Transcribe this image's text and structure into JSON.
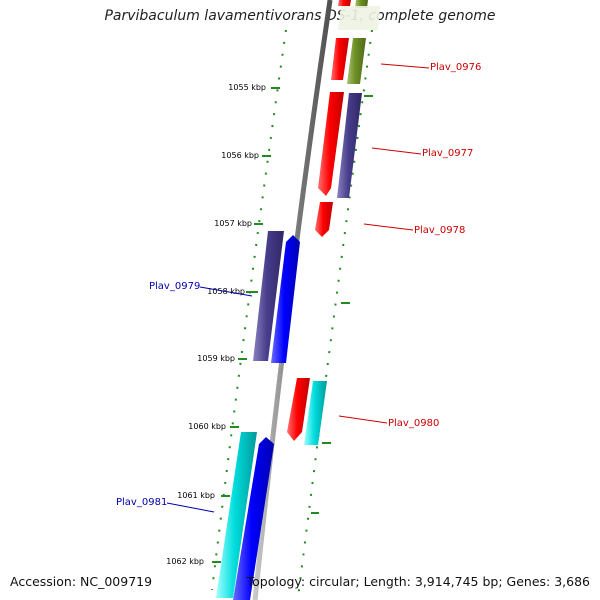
{
  "title": "Parvibaculum lavamentivorans DS-1, complete genome",
  "footer": {
    "accession": "Accession: NC_009719",
    "summary": "Topology: circular; Length: 3,914,745 bp; Genes: 3,686"
  },
  "ticks": [
    {
      "label": "1055 kbp",
      "kbp": 1055
    },
    {
      "label": "1056 kbp",
      "kbp": 1056
    },
    {
      "label": "1057 kbp",
      "kbp": 1057
    },
    {
      "label": "1058 kbp",
      "kbp": 1058
    },
    {
      "label": "1059 kbp",
      "kbp": 1059
    },
    {
      "label": "1060 kbp",
      "kbp": 1060
    },
    {
      "label": "1061 kbp",
      "kbp": 1061
    },
    {
      "label": "1062 kbp",
      "kbp": 1062
    }
  ],
  "genes": [
    {
      "label": "Plav_0976",
      "color": "#cc0000",
      "side": "right"
    },
    {
      "label": "Plav_0977",
      "color": "#cc0000",
      "side": "right"
    },
    {
      "label": "Plav_0978",
      "color": "#cc0000",
      "side": "right"
    },
    {
      "label": "Plav_0979",
      "color": "#0000aa",
      "side": "left"
    },
    {
      "label": "Plav_0980",
      "color": "#cc0000",
      "side": "right"
    },
    {
      "label": "Plav_0981",
      "color": "#0000aa",
      "side": "left"
    }
  ],
  "feature_colors": {
    "red": "#ff0000",
    "olive": "#6b8e23",
    "slate": "#483d8b",
    "blue": "#0000ff",
    "cyan": "#00cccc",
    "tick_green": "#228b22",
    "backbone": "#808080"
  }
}
